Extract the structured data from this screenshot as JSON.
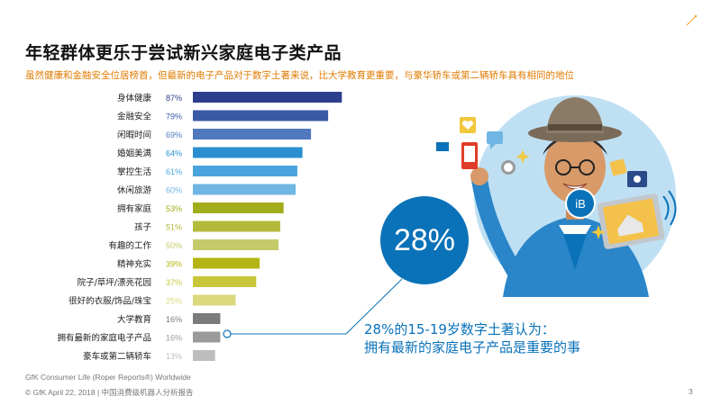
{
  "title": "年轻群体更乐于尝试新兴家庭电子类产品",
  "subtitle": "虽然健康和金融安全位居榜首，但最新的电子产品对于数字土著来说，比大学教育更重要，与豪华轿车或第二辆轿车具有相同的地位",
  "chart_data": {
    "type": "bar",
    "orientation": "horizontal",
    "categories": [
      "身体健康",
      "金融安全",
      "闲暇时间",
      "婚姻美满",
      "掌控生活",
      "休闲旅游",
      "拥有家庭",
      "孩子",
      "有趣的工作",
      "精神充实",
      "院子/草坪/漂亮花园",
      "很好的衣服/饰品/珠宝",
      "大学教育",
      "拥有最新的家庭电子产品",
      "豪车或第二辆轿车"
    ],
    "values": [
      87,
      79,
      69,
      64,
      61,
      60,
      53,
      51,
      50,
      39,
      37,
      25,
      16,
      16,
      13
    ],
    "value_labels": [
      "87%",
      "79%",
      "69%",
      "64%",
      "61%",
      "60%",
      "53%",
      "51%",
      "50%",
      "39%",
      "37%",
      "25%",
      "16%",
      "16%",
      "13%"
    ],
    "colors": [
      "#2b3f8c",
      "#3a5aa5",
      "#4f78bd",
      "#2a8fd0",
      "#4aa3dc",
      "#6fb6e4",
      "#a3ad1b",
      "#b3ba3a",
      "#c4c96a",
      "#b4b414",
      "#c9c63c",
      "#dcd87e",
      "#7b7b7b",
      "#9a9a9a",
      "#bdbdbd"
    ],
    "highlight_index": 13
  },
  "stat": {
    "value": "28%",
    "line1": "28%的15-19岁数字土著认为：",
    "line2": "拥有最新的家庭电子产品是重要的事"
  },
  "illustration": {
    "badge_text": "iB"
  },
  "footer": {
    "source": "GfK Consumer Life (Roper Reports®) Worldwide",
    "copyright": "© GfK April 22, 2018 | 中国消费级机器人分析报告",
    "page": "3"
  }
}
